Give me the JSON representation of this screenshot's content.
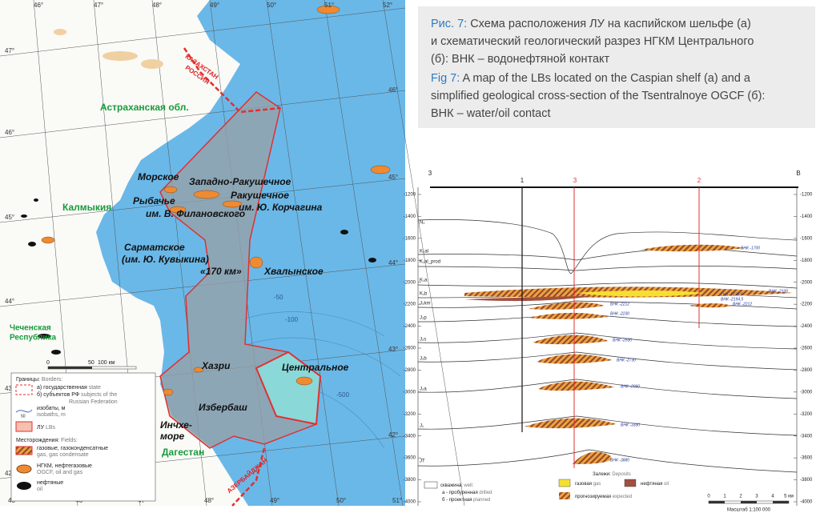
{
  "caption": {
    "ru_label": "Рис. 7:",
    "ru_lines": [
      " Схема расположения ЛУ на каспийском шельфе (а)",
      "и схематический геологический разрез НГКМ Центрального",
      "(б): ВНК – водонефтяной контакт"
    ],
    "en_label": "Fig 7:",
    "en_lines": [
      " A map of the LBs located on the Caspian shelf (a) and a",
      "simplified geological cross-section of the Tsentralnoye OGCF (б):",
      "ВНК – water/oil contact"
    ]
  },
  "map": {
    "lon_top": [
      "46°",
      "47°",
      "48°",
      "49°",
      "50°",
      "51°",
      "52°"
    ],
    "lon_bottom": [
      "45°",
      "46°",
      "47°",
      "48°",
      "49°",
      "50°",
      "51°"
    ],
    "lat_left": [
      "47°",
      "46°",
      "45°",
      "44°",
      "43°",
      "42°"
    ],
    "lat_right": [
      "46°",
      "45°",
      "44°",
      "43°",
      "42°"
    ],
    "regions": [
      "Астраханская обл.",
      "Калмыкия",
      "Чеченская",
      "Республика",
      "Дагестан"
    ],
    "fields": [
      "Морское",
      "Западно-Ракушечное",
      "Рыбачье",
      "им. В. Филановского",
      "Ракушечное",
      "им. Ю. Корчагина",
      "Сарматское",
      "(им. Ю. Кувыкина)",
      "«170 км»",
      "Хвалынское",
      "Хазри",
      "Центральное",
      "Избербаш",
      "Инчхе-",
      "море"
    ],
    "borders": [
      "КАЗАХСТАН",
      "РОССИЯ",
      "АЗЕРБАЙДЖАН"
    ],
    "isobaths": [
      "-50",
      "-100",
      "-500"
    ],
    "scale": [
      "0",
      "50",
      "100 км"
    ],
    "legend": {
      "borders_ru": "Границы:",
      "borders_en": " Borders:",
      "state_ru": "а) государственная",
      "state_en": " state",
      "subj_ru": "б) субъектов РФ",
      "subj_en": " subjects of the",
      "subj_en2": "Russian Federation",
      "iso_num": "50",
      "iso_ru": "изобаты, м",
      "iso_en": "isobaths, m",
      "lb_ru": "ЛУ",
      "lb_en": " LBs",
      "fields_ru": "Месторождения:",
      "fields_en": " Fields:",
      "gas_ru": "газовые, газоконденсатные",
      "gas_en": "gas, gas condensate",
      "ogcf_ru": "НГКМ, нефтегазовые",
      "ogcf_en": "OGCF, oil and gas",
      "oil_ru": "нефтяные",
      "oil_en": "oil"
    }
  },
  "section": {
    "wells": [
      "3",
      "1",
      "3",
      "2",
      "В"
    ],
    "depths": [
      "-1200",
      "-1400",
      "-1600",
      "-1800",
      "-2000",
      "-2200",
      "-2400",
      "-2600",
      "-2800",
      "-3000",
      "-3200",
      "-3400",
      "-3600",
      "-3800",
      "-4000"
    ],
    "horizons": [
      "N₁",
      "K₂al",
      "K₁al_prod",
      "K₁a",
      "K₁b",
      "J₃km",
      "J₂p",
      "J₂s",
      "J₂b",
      "J₂a",
      "J₁",
      "JT"
    ],
    "contacts": [
      "ВНК -1700",
      "ВНК -2100",
      "ГНК -2138,5",
      "ВНК -2194,5",
      "ВНК -2212",
      "ВНК -2212",
      "ВНК -2230",
      "ВНК -2530",
      "ВНК -2730",
      "ВНК -2990",
      "ВНК -3330",
      "ВНК -3880"
    ],
    "legend": {
      "well_ru": "скважина:",
      "well_en": " well:",
      "drilled_ru": "а - пробуренная",
      "drilled_en": " drilled",
      "planned_ru": "б - проектная",
      "planned_en": " planned",
      "dep_ru": "Залежи:",
      "dep_en": " Deposits",
      "gas_ru": "газовая",
      "gas_en": " gas",
      "oil_ru": "нефтяная",
      "oil_en": " oil",
      "exp_ru": "прогнозируемая",
      "exp_en": " expected"
    },
    "scale": [
      "0",
      "1",
      "2",
      "3",
      "4",
      "5 км"
    ],
    "scale_title": "Масштаб 1:100 000"
  }
}
